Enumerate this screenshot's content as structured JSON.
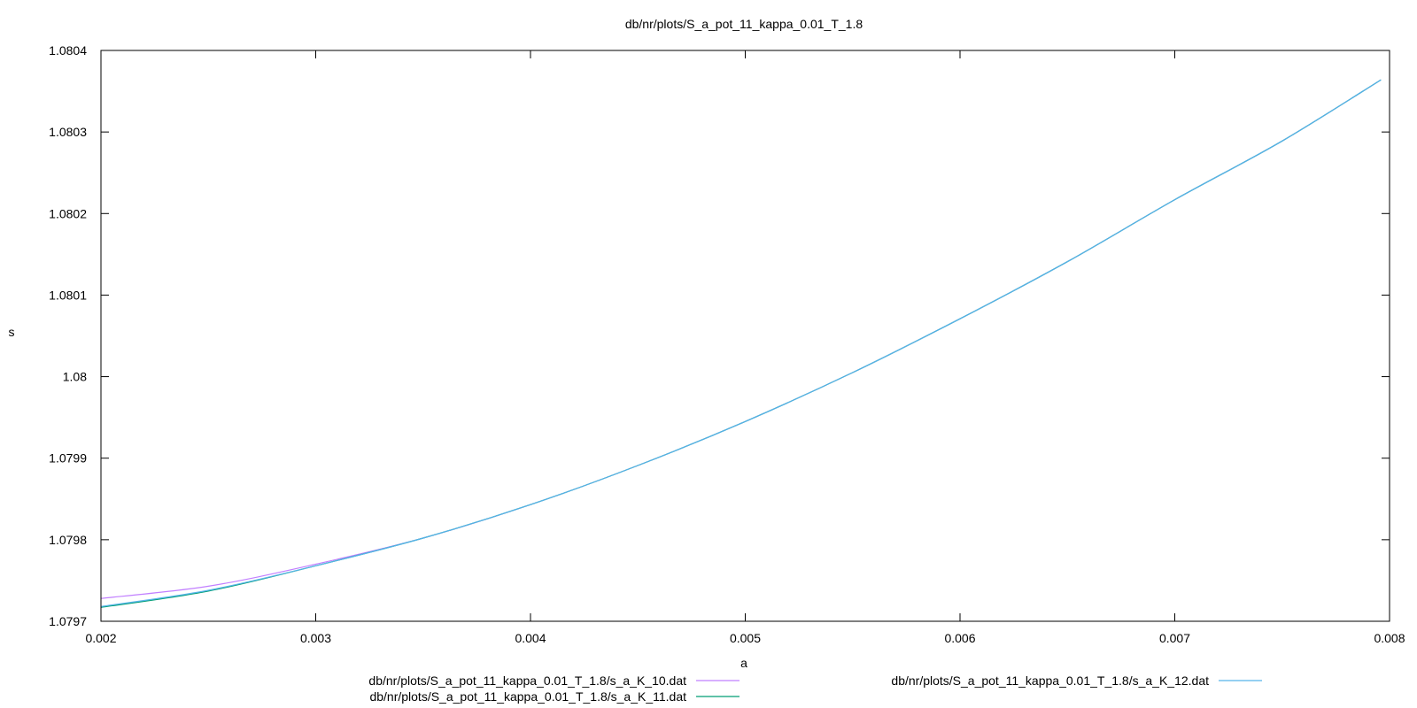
{
  "chart_data": {
    "type": "line",
    "title": "db/nr/plots/S_a_pot_11_kappa_0.01_T_1.8",
    "xlabel": "a",
    "ylabel": "s",
    "xlim": [
      0.002,
      0.008
    ],
    "ylim": [
      1.0797,
      1.0804
    ],
    "x_ticks": [
      "0.002",
      "0.003",
      "0.004",
      "0.005",
      "0.006",
      "0.007",
      "0.008"
    ],
    "y_ticks": [
      "1.0797",
      "1.0798",
      "1.0799",
      "1.08",
      "1.0801",
      "1.0802",
      "1.0803",
      "1.0804"
    ],
    "grid": false,
    "legend_position": "bottom",
    "series": [
      {
        "name": "db/nr/plots/S_a_pot_11_kappa_0.01_T_1.8/s_a_K_10.dat",
        "color": "#c17fff",
        "points": [
          [
            0.002,
            1.079728
          ],
          [
            0.0025,
            1.079743
          ],
          [
            0.003,
            1.07977
          ],
          [
            0.0035,
            1.079802
          ],
          [
            0.004,
            1.079843
          ],
          [
            0.0045,
            1.079891
          ],
          [
            0.005,
            1.079945
          ],
          [
            0.0055,
            1.080005
          ],
          [
            0.006,
            1.080071
          ],
          [
            0.0065,
            1.080141
          ],
          [
            0.007,
            1.080217
          ],
          [
            0.0075,
            1.080289
          ],
          [
            0.00796,
            1.080364
          ]
        ]
      },
      {
        "name": "db/nr/plots/S_a_pot_11_kappa_0.01_T_1.8/s_a_K_11.dat",
        "color": "#009e73",
        "points": [
          [
            0.002,
            1.079717
          ],
          [
            0.0025,
            1.079737
          ],
          [
            0.003,
            1.079768
          ],
          [
            0.0035,
            1.079802
          ],
          [
            0.004,
            1.079843
          ],
          [
            0.0045,
            1.079891
          ],
          [
            0.005,
            1.079945
          ],
          [
            0.0055,
            1.080005
          ],
          [
            0.006,
            1.080071
          ],
          [
            0.0065,
            1.080141
          ],
          [
            0.007,
            1.080217
          ],
          [
            0.0075,
            1.080289
          ],
          [
            0.00796,
            1.080364
          ]
        ]
      },
      {
        "name": "db/nr/plots/S_a_pot_11_kappa_0.01_T_1.8/s_a_K_12.dat",
        "color": "#56b4e9",
        "points": [
          [
            0.002,
            1.079718
          ],
          [
            0.0025,
            1.079738
          ],
          [
            0.003,
            1.079768
          ],
          [
            0.0035,
            1.079802
          ],
          [
            0.004,
            1.079843
          ],
          [
            0.0045,
            1.079891
          ],
          [
            0.005,
            1.079945
          ],
          [
            0.0055,
            1.080005
          ],
          [
            0.006,
            1.080071
          ],
          [
            0.0065,
            1.080141
          ],
          [
            0.007,
            1.080217
          ],
          [
            0.0075,
            1.080289
          ],
          [
            0.00796,
            1.080364
          ]
        ]
      }
    ]
  }
}
